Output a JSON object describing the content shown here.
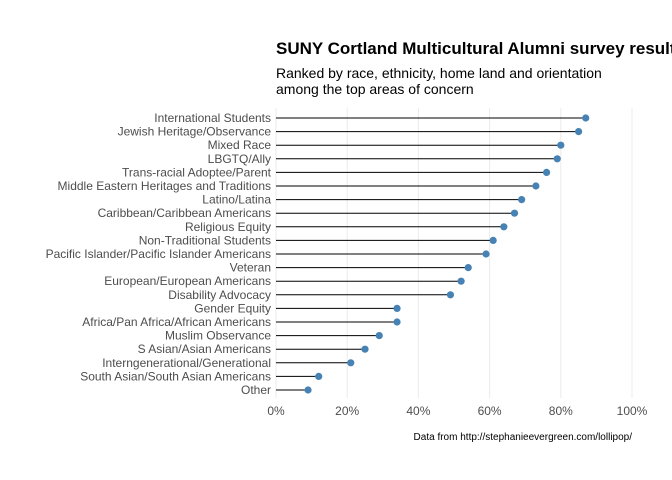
{
  "chart_data": {
    "type": "lollipop",
    "title": "SUNY Cortland Multicultural Alumni survey results",
    "subtitle_lines": [
      "Ranked by race, ethnicity, home land and orientation",
      "among the top areas of concern"
    ],
    "caption": "Data from http://stephanieevergreen.com/lollipop/",
    "xlabel": "",
    "ylabel": "",
    "xlim": [
      0,
      1
    ],
    "x_ticks": [
      0,
      0.2,
      0.4,
      0.6,
      0.8,
      1.0
    ],
    "x_tick_labels": [
      "0%",
      "20%",
      "40%",
      "60%",
      "80%",
      "100%"
    ],
    "grid": "vertical major",
    "categories": [
      "International Students",
      "Jewish Heritage/Observance",
      "Mixed Race",
      "LBGTQ/Ally",
      "Trans-racial Adoptee/Parent",
      "Middle Eastern Heritages and Traditions",
      "Latino/Latina",
      "Caribbean/Caribbean Americans",
      "Religious Equity",
      "Non-Traditional Students",
      "Pacific Islander/Pacific Islander Americans",
      "Veteran",
      "European/European Americans",
      "Disability Advocacy",
      "Gender Equity",
      "Africa/Pan Africa/African Americans",
      "Muslim Observance",
      "S Asian/Asian Americans",
      "Interngenerational/Generational",
      "South Asian/South Asian Americans",
      "Other"
    ],
    "values": [
      0.87,
      0.85,
      0.8,
      0.79,
      0.76,
      0.73,
      0.69,
      0.67,
      0.64,
      0.61,
      0.59,
      0.54,
      0.52,
      0.49,
      0.34,
      0.34,
      0.29,
      0.25,
      0.21,
      0.12,
      0.09
    ],
    "colors": {
      "dot": "#4682b4",
      "stem": "#000000",
      "grid": "#ebebeb",
      "label": "#4d4d4d"
    }
  }
}
